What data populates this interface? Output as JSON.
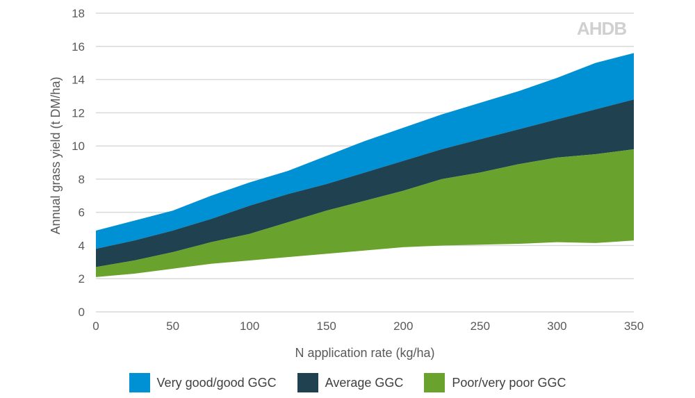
{
  "chart_data": {
    "type": "area",
    "title": "",
    "xlabel": "N application rate (kg/ha)",
    "ylabel": "Annual grass yield (t DM/ha)",
    "xlim": [
      0,
      350
    ],
    "ylim": [
      0,
      18
    ],
    "xticks": [
      0,
      50,
      100,
      150,
      200,
      250,
      300,
      350
    ],
    "yticks": [
      0,
      2,
      4,
      6,
      8,
      10,
      12,
      14,
      16,
      18
    ],
    "grid": "horizontal",
    "legend_position": "bottom",
    "x": [
      0,
      25,
      50,
      75,
      100,
      125,
      150,
      175,
      200,
      225,
      250,
      275,
      300,
      325,
      350
    ],
    "baseline": [
      2.1,
      2.3,
      2.6,
      2.9,
      3.1,
      3.3,
      3.5,
      3.7,
      3.9,
      4.0,
      4.05,
      4.1,
      4.2,
      4.15,
      4.3
    ],
    "series": [
      {
        "name": "Very good/good GGC",
        "color": "#0090d4",
        "upper": [
          4.9,
          5.5,
          6.1,
          7.0,
          7.8,
          8.5,
          9.4,
          10.3,
          11.1,
          11.9,
          12.6,
          13.3,
          14.1,
          15.0,
          15.6
        ]
      },
      {
        "name": "Average GGC",
        "color": "#1f4150",
        "upper": [
          3.8,
          4.3,
          4.9,
          5.6,
          6.4,
          7.1,
          7.7,
          8.4,
          9.1,
          9.8,
          10.4,
          11.0,
          11.6,
          12.2,
          12.8
        ]
      },
      {
        "name": "Poor/very poor GGC",
        "color": "#6aa22e",
        "upper": [
          2.7,
          3.1,
          3.6,
          4.2,
          4.7,
          5.4,
          6.1,
          6.7,
          7.3,
          8.0,
          8.4,
          8.9,
          9.3,
          9.5,
          9.8
        ]
      }
    ]
  },
  "logo": "AHDB"
}
